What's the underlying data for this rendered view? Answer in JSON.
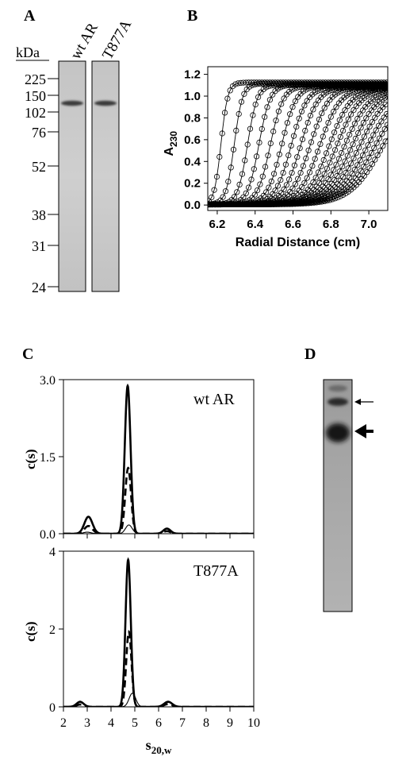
{
  "panels": {
    "a": {
      "label": "A",
      "unit": "kDa",
      "lanes": [
        "wt AR",
        "T877A"
      ],
      "markers": [
        "225",
        "150",
        "102",
        "76",
        "52",
        "38",
        "31",
        "24"
      ]
    },
    "b": {
      "label": "B"
    },
    "c": {
      "label": "C"
    },
    "d": {
      "label": "D"
    }
  },
  "chart_data": [
    {
      "panel": "B",
      "type": "line",
      "xlabel": "Radial Distance (cm)",
      "ylabel": "A",
      "ylabel_subscript": "230",
      "xlim": [
        6.15,
        7.1
      ],
      "ylim": [
        -0.05,
        1.27
      ],
      "xticks": [
        "6.2",
        "6.4",
        "6.6",
        "6.8",
        "7.0"
      ],
      "xtick_values": [
        6.2,
        6.4,
        6.6,
        6.8,
        7.0
      ],
      "yticks": [
        "0.0",
        "0.2",
        "0.4",
        "0.6",
        "0.8",
        "1.0",
        "1.2"
      ],
      "ytick_values": [
        0.0,
        0.2,
        0.4,
        0.6,
        0.8,
        1.0,
        1.2
      ],
      "marker": "open-circle",
      "boundary_midpoints": [
        6.22,
        6.29,
        6.36,
        6.42,
        6.48,
        6.54,
        6.59,
        6.64,
        6.69,
        6.74,
        6.79,
        6.83,
        6.87,
        6.91,
        6.95,
        6.99,
        7.03,
        7.07
      ],
      "plateaus": [
        1.12,
        1.11,
        1.1,
        1.1,
        1.09,
        1.09,
        1.08,
        1.08,
        1.08,
        1.07,
        1.07,
        1.07,
        1.06,
        1.06,
        1.06,
        1.05,
        1.05,
        1.05
      ]
    },
    {
      "panel": "C",
      "type": "line",
      "annotation": "wt AR",
      "ylabel": "c(s)",
      "xlim": [
        2,
        10
      ],
      "ylim": [
        0,
        3.0
      ],
      "yticks": [
        "0.0",
        "1.5",
        "3.0"
      ],
      "ytick_values": [
        0.0,
        1.5,
        3.0
      ],
      "series": [
        {
          "style": "thick-solid",
          "peaks": [
            {
              "s": 3.05,
              "height": 0.33,
              "width": 0.17
            },
            {
              "s": 4.7,
              "height": 2.88,
              "width": 0.12
            },
            {
              "s": 6.35,
              "height": 0.1,
              "width": 0.15
            }
          ]
        },
        {
          "style": "thick-dashed",
          "peaks": [
            {
              "s": 3.05,
              "height": 0.15,
              "width": 0.17
            },
            {
              "s": 4.72,
              "height": 1.28,
              "width": 0.12
            },
            {
              "s": 6.35,
              "height": 0.05,
              "width": 0.15
            }
          ]
        },
        {
          "style": "thin-solid",
          "peaks": [
            {
              "s": 3.0,
              "height": 0.03,
              "width": 0.17
            },
            {
              "s": 4.75,
              "height": 0.17,
              "width": 0.14
            }
          ]
        }
      ]
    },
    {
      "panel": "C",
      "type": "line",
      "annotation": "T877A",
      "ylabel": "c(s)",
      "xlabel": "s",
      "xlabel_subscript": "20,w",
      "xlim": [
        2,
        10
      ],
      "ylim": [
        0,
        4
      ],
      "xticks": [
        "2",
        "3",
        "4",
        "5",
        "6",
        "7",
        "8",
        "9",
        "10"
      ],
      "xtick_values": [
        2,
        3,
        4,
        5,
        6,
        7,
        8,
        9,
        10
      ],
      "yticks": [
        "0",
        "2",
        "4"
      ],
      "ytick_values": [
        0,
        2,
        4
      ],
      "series": [
        {
          "style": "thick-solid",
          "peaks": [
            {
              "s": 2.7,
              "height": 0.13,
              "width": 0.15
            },
            {
              "s": 4.72,
              "height": 3.78,
              "width": 0.11
            },
            {
              "s": 6.4,
              "height": 0.13,
              "width": 0.17
            }
          ]
        },
        {
          "style": "thick-dashed",
          "peaks": [
            {
              "s": 2.7,
              "height": 0.06,
              "width": 0.15
            },
            {
              "s": 4.75,
              "height": 1.93,
              "width": 0.11
            },
            {
              "s": 6.4,
              "height": 0.07,
              "width": 0.17
            }
          ]
        },
        {
          "style": "thin-solid",
          "peaks": [
            {
              "s": 4.9,
              "height": 0.35,
              "width": 0.14
            }
          ]
        }
      ]
    }
  ]
}
